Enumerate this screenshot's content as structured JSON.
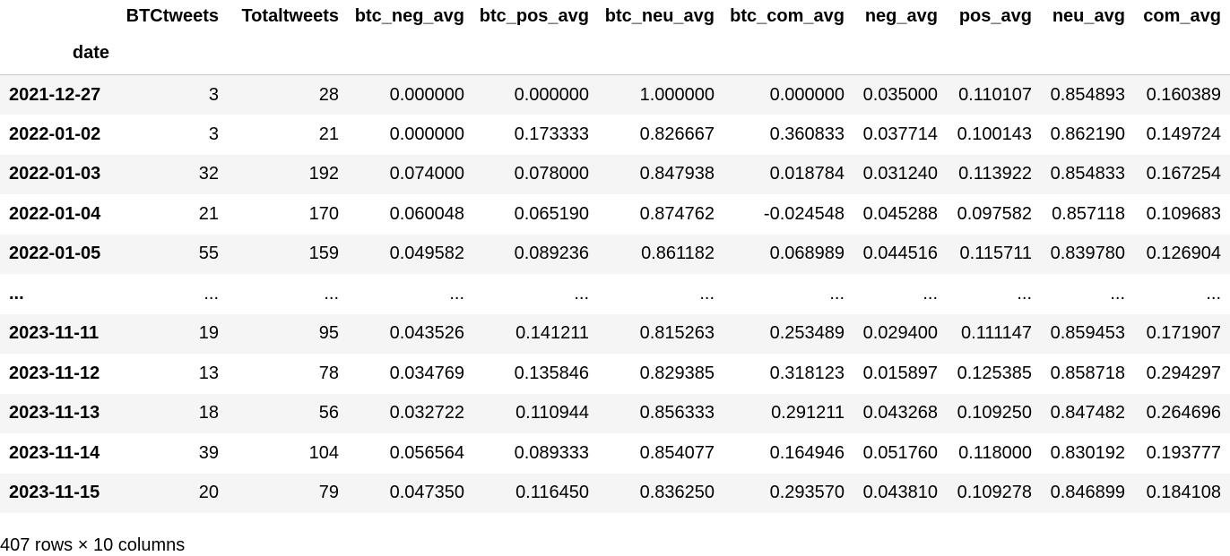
{
  "dataframe": {
    "columns": [
      "BTCtweets",
      "Totaltweets",
      "btc_neg_avg",
      "btc_pos_avg",
      "btc_neu_avg",
      "btc_com_avg",
      "neg_avg",
      "pos_avg",
      "neu_avg",
      "com_avg"
    ],
    "index_name": "date",
    "rows": [
      {
        "index": "2021-12-27",
        "cells": [
          "3",
          "28",
          "0.000000",
          "0.000000",
          "1.000000",
          "0.000000",
          "0.035000",
          "0.110107",
          "0.854893",
          "0.160389"
        ]
      },
      {
        "index": "2022-01-02",
        "cells": [
          "3",
          "21",
          "0.000000",
          "0.173333",
          "0.826667",
          "0.360833",
          "0.037714",
          "0.100143",
          "0.862190",
          "0.149724"
        ]
      },
      {
        "index": "2022-01-03",
        "cells": [
          "32",
          "192",
          "0.074000",
          "0.078000",
          "0.847938",
          "0.018784",
          "0.031240",
          "0.113922",
          "0.854833",
          "0.167254"
        ]
      },
      {
        "index": "2022-01-04",
        "cells": [
          "21",
          "170",
          "0.060048",
          "0.065190",
          "0.874762",
          "-0.024548",
          "0.045288",
          "0.097582",
          "0.857118",
          "0.109683"
        ]
      },
      {
        "index": "2022-01-05",
        "cells": [
          "55",
          "159",
          "0.049582",
          "0.089236",
          "0.861182",
          "0.068989",
          "0.044516",
          "0.115711",
          "0.839780",
          "0.126904"
        ]
      },
      {
        "index": "...",
        "cells": [
          "...",
          "...",
          "...",
          "...",
          "...",
          "...",
          "...",
          "...",
          "...",
          "..."
        ]
      },
      {
        "index": "2023-11-11",
        "cells": [
          "19",
          "95",
          "0.043526",
          "0.141211",
          "0.815263",
          "0.253489",
          "0.029400",
          "0.111147",
          "0.859453",
          "0.171907"
        ]
      },
      {
        "index": "2023-11-12",
        "cells": [
          "13",
          "78",
          "0.034769",
          "0.135846",
          "0.829385",
          "0.318123",
          "0.015897",
          "0.125385",
          "0.858718",
          "0.294297"
        ]
      },
      {
        "index": "2023-11-13",
        "cells": [
          "18",
          "56",
          "0.032722",
          "0.110944",
          "0.856333",
          "0.291211",
          "0.043268",
          "0.109250",
          "0.847482",
          "0.264696"
        ]
      },
      {
        "index": "2023-11-14",
        "cells": [
          "39",
          "104",
          "0.056564",
          "0.089333",
          "0.854077",
          "0.164946",
          "0.051760",
          "0.118000",
          "0.830192",
          "0.193777"
        ]
      },
      {
        "index": "2023-11-15",
        "cells": [
          "20",
          "79",
          "0.047350",
          "0.116450",
          "0.836250",
          "0.293570",
          "0.043810",
          "0.109278",
          "0.846899",
          "0.184108"
        ]
      }
    ],
    "shape_text": "407 rows × 10 columns"
  }
}
